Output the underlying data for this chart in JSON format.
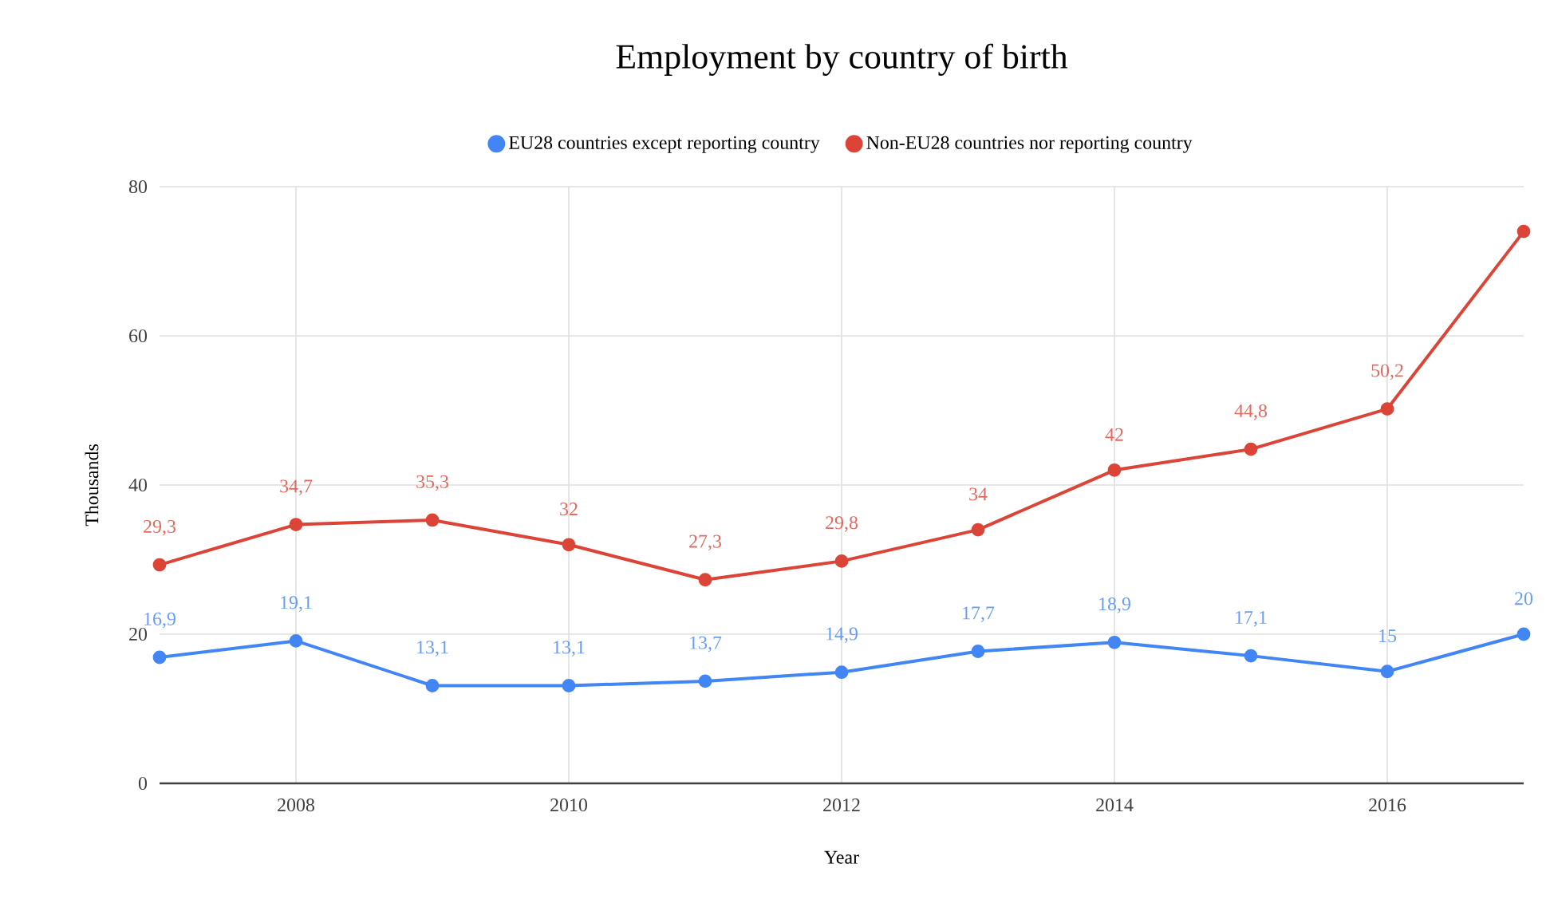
{
  "chart_data": {
    "type": "line",
    "title": "Employment by country of birth",
    "xlabel": "Year",
    "ylabel": "Thousands",
    "x": [
      2007,
      2008,
      2009,
      2010,
      2011,
      2012,
      2013,
      2014,
      2015,
      2016,
      2017
    ],
    "series": [
      {
        "name": "EU28 countries except reporting country",
        "color": "#4285f4",
        "values": [
          16.9,
          19.1,
          13.1,
          13.1,
          13.7,
          14.9,
          17.7,
          18.9,
          17.1,
          15,
          20
        ],
        "value_labels": [
          "16,9",
          "19,1",
          "13,1",
          "13,1",
          "13,7",
          "14,9",
          "17,7",
          "18,9",
          "17,1",
          "15",
          "20"
        ]
      },
      {
        "name": "Non-EU28 countries nor reporting country",
        "color": "#db4437",
        "values": [
          29.3,
          34.7,
          35.3,
          32,
          27.3,
          29.8,
          34,
          42,
          44.8,
          50.2,
          74
        ],
        "value_labels": [
          "29,3",
          "34,7",
          "35,3",
          "32",
          "27,3",
          "29,8",
          "34",
          "42",
          "44,8",
          "50,2",
          null
        ]
      }
    ],
    "xlim": [
      2007,
      2017
    ],
    "xticks": [
      2008,
      2010,
      2012,
      2014,
      2016
    ],
    "ylim": [
      0,
      80
    ],
    "yticks": [
      0,
      20,
      40,
      60,
      80
    ],
    "grid": true,
    "legend": "top",
    "marker": "circle",
    "line_style": "solid"
  }
}
